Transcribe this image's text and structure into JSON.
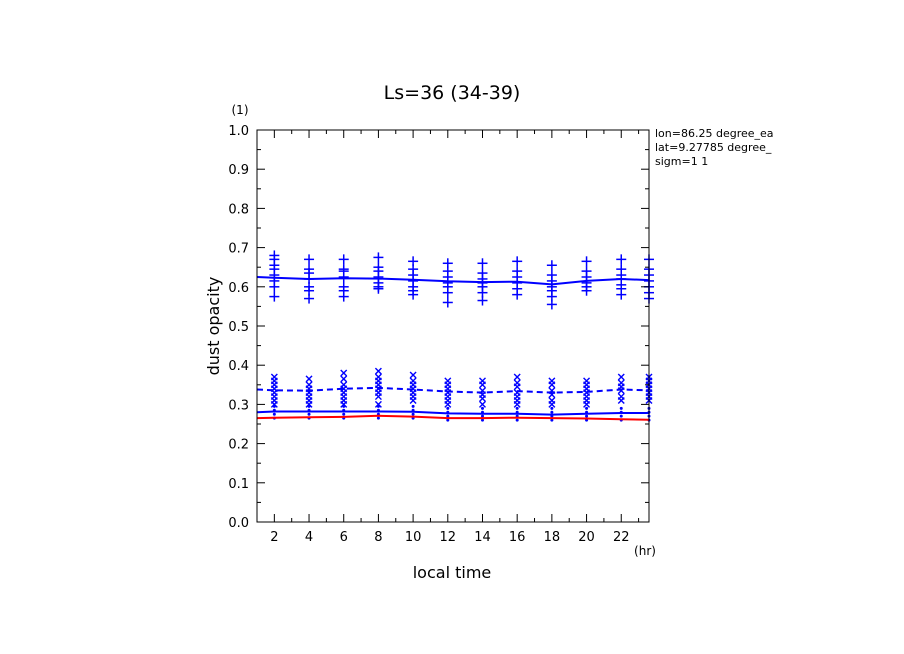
{
  "chart_data": {
    "type": "line",
    "title": "Ls=36 (34-39)",
    "xlabel": "local time",
    "x_unit": "(hr)",
    "ylabel": "dust opacity",
    "y_unit": "(1)",
    "xlim": [
      1,
      23.6
    ],
    "ylim": [
      0,
      1.0
    ],
    "xticks": [
      2,
      4,
      6,
      8,
      10,
      12,
      14,
      16,
      18,
      20,
      22
    ],
    "xtick_labels": [
      "2",
      "4",
      "6",
      "8",
      "10",
      "12",
      "14",
      "16",
      "18",
      "20",
      "22"
    ],
    "yticks": [
      0,
      0.1,
      0.2,
      0.3,
      0.4,
      0.5,
      0.6,
      0.7,
      0.8,
      0.9,
      1.0
    ],
    "ytick_labels": [
      "0.0",
      "0.1",
      "0.2",
      "0.3",
      "0.4",
      "0.5",
      "0.6",
      "0.7",
      "0.8",
      "0.9",
      "1.0"
    ],
    "grid": false,
    "annotations": [
      "lon=86.25 degree_ea",
      "lat=9.27785 degree_",
      "sigm=1 1"
    ],
    "colors": {
      "blue": "#0000ff",
      "red": "#ff0000"
    },
    "series": [
      {
        "style": "solid-blue",
        "x": [
          1,
          2,
          4,
          6,
          8,
          10,
          12,
          14,
          16,
          18,
          20,
          22,
          23.6
        ],
        "values": [
          0.625,
          0.623,
          0.62,
          0.622,
          0.621,
          0.618,
          0.614,
          0.612,
          0.613,
          0.606,
          0.615,
          0.62,
          0.617
        ]
      },
      {
        "style": "dashed-blue",
        "x": [
          1,
          2,
          4,
          6,
          8,
          10,
          12,
          14,
          16,
          18,
          20,
          22,
          23.6
        ],
        "values": [
          0.338,
          0.336,
          0.335,
          0.34,
          0.342,
          0.338,
          0.333,
          0.33,
          0.334,
          0.33,
          0.332,
          0.338,
          0.336
        ]
      },
      {
        "style": "solid-blue-low",
        "x": [
          1,
          2,
          4,
          6,
          8,
          10,
          12,
          14,
          16,
          18,
          20,
          22,
          23.6
        ],
        "values": [
          0.28,
          0.282,
          0.282,
          0.282,
          0.282,
          0.281,
          0.277,
          0.276,
          0.276,
          0.274,
          0.276,
          0.278,
          0.278
        ]
      },
      {
        "style": "solid-red",
        "x": [
          1,
          2,
          4,
          6,
          8,
          10,
          12,
          14,
          16,
          18,
          20,
          22,
          23.6
        ],
        "values": [
          0.265,
          0.266,
          0.267,
          0.268,
          0.271,
          0.269,
          0.265,
          0.265,
          0.266,
          0.265,
          0.264,
          0.262,
          0.261
        ]
      }
    ],
    "scatter_groups": [
      {
        "marker": "plus",
        "points": [
          [
            2,
            0.68
          ],
          [
            2,
            0.67
          ],
          [
            2,
            0.655
          ],
          [
            2,
            0.645
          ],
          [
            2,
            0.63
          ],
          [
            2,
            0.615
          ],
          [
            2,
            0.6
          ],
          [
            2,
            0.575
          ],
          [
            4,
            0.67
          ],
          [
            4,
            0.645
          ],
          [
            4,
            0.635
          ],
          [
            4,
            0.62
          ],
          [
            4,
            0.6
          ],
          [
            4,
            0.59
          ],
          [
            4,
            0.57
          ],
          [
            6,
            0.67
          ],
          [
            6,
            0.645
          ],
          [
            6,
            0.64
          ],
          [
            6,
            0.625
          ],
          [
            6,
            0.6
          ],
          [
            6,
            0.59
          ],
          [
            6,
            0.575
          ],
          [
            8,
            0.675
          ],
          [
            8,
            0.65
          ],
          [
            8,
            0.64
          ],
          [
            8,
            0.625
          ],
          [
            8,
            0.61
          ],
          [
            8,
            0.6
          ],
          [
            8,
            0.595
          ],
          [
            10,
            0.665
          ],
          [
            10,
            0.645
          ],
          [
            10,
            0.63
          ],
          [
            10,
            0.615
          ],
          [
            10,
            0.6
          ],
          [
            10,
            0.59
          ],
          [
            10,
            0.58
          ],
          [
            12,
            0.66
          ],
          [
            12,
            0.64
          ],
          [
            12,
            0.625
          ],
          [
            12,
            0.61
          ],
          [
            12,
            0.6
          ],
          [
            12,
            0.585
          ],
          [
            12,
            0.56
          ],
          [
            14,
            0.66
          ],
          [
            14,
            0.635
          ],
          [
            14,
            0.62
          ],
          [
            14,
            0.61
          ],
          [
            14,
            0.6
          ],
          [
            14,
            0.585
          ],
          [
            14,
            0.565
          ],
          [
            16,
            0.665
          ],
          [
            16,
            0.64
          ],
          [
            16,
            0.625
          ],
          [
            16,
            0.61
          ],
          [
            16,
            0.595
          ],
          [
            16,
            0.58
          ],
          [
            18,
            0.655
          ],
          [
            18,
            0.63
          ],
          [
            18,
            0.615
          ],
          [
            18,
            0.6
          ],
          [
            18,
            0.59
          ],
          [
            18,
            0.575
          ],
          [
            18,
            0.555
          ],
          [
            20,
            0.665
          ],
          [
            20,
            0.64
          ],
          [
            20,
            0.625
          ],
          [
            20,
            0.61
          ],
          [
            20,
            0.6
          ],
          [
            20,
            0.59
          ],
          [
            22,
            0.67
          ],
          [
            22,
            0.645
          ],
          [
            22,
            0.63
          ],
          [
            22,
            0.62
          ],
          [
            22,
            0.605
          ],
          [
            22,
            0.595
          ],
          [
            22,
            0.58
          ],
          [
            23.6,
            0.67
          ],
          [
            23.6,
            0.645
          ],
          [
            23.6,
            0.63
          ],
          [
            23.6,
            0.615
          ],
          [
            23.6,
            0.6
          ],
          [
            23.6,
            0.585
          ],
          [
            23.6,
            0.57
          ]
        ]
      },
      {
        "marker": "cross",
        "points": [
          [
            2,
            0.37
          ],
          [
            2,
            0.36
          ],
          [
            2,
            0.35
          ],
          [
            2,
            0.34
          ],
          [
            2,
            0.33
          ],
          [
            2,
            0.32
          ],
          [
            2,
            0.31
          ],
          [
            2,
            0.3
          ],
          [
            4,
            0.365
          ],
          [
            4,
            0.35
          ],
          [
            4,
            0.34
          ],
          [
            4,
            0.33
          ],
          [
            4,
            0.32
          ],
          [
            4,
            0.31
          ],
          [
            4,
            0.3
          ],
          [
            6,
            0.38
          ],
          [
            6,
            0.365
          ],
          [
            6,
            0.35
          ],
          [
            6,
            0.34
          ],
          [
            6,
            0.33
          ],
          [
            6,
            0.32
          ],
          [
            6,
            0.31
          ],
          [
            6,
            0.3
          ],
          [
            8,
            0.385
          ],
          [
            8,
            0.37
          ],
          [
            8,
            0.36
          ],
          [
            8,
            0.35
          ],
          [
            8,
            0.34
          ],
          [
            8,
            0.33
          ],
          [
            8,
            0.32
          ],
          [
            8,
            0.3
          ],
          [
            10,
            0.375
          ],
          [
            10,
            0.36
          ],
          [
            10,
            0.35
          ],
          [
            10,
            0.34
          ],
          [
            10,
            0.33
          ],
          [
            10,
            0.32
          ],
          [
            10,
            0.31
          ],
          [
            12,
            0.36
          ],
          [
            12,
            0.35
          ],
          [
            12,
            0.34
          ],
          [
            12,
            0.33
          ],
          [
            12,
            0.32
          ],
          [
            12,
            0.31
          ],
          [
            12,
            0.3
          ],
          [
            14,
            0.36
          ],
          [
            14,
            0.35
          ],
          [
            14,
            0.335
          ],
          [
            14,
            0.325
          ],
          [
            14,
            0.315
          ],
          [
            14,
            0.3
          ],
          [
            16,
            0.37
          ],
          [
            16,
            0.355
          ],
          [
            16,
            0.345
          ],
          [
            16,
            0.33
          ],
          [
            16,
            0.32
          ],
          [
            16,
            0.31
          ],
          [
            16,
            0.3
          ],
          [
            18,
            0.36
          ],
          [
            18,
            0.35
          ],
          [
            18,
            0.335
          ],
          [
            18,
            0.325
          ],
          [
            18,
            0.31
          ],
          [
            18,
            0.3
          ],
          [
            20,
            0.36
          ],
          [
            20,
            0.35
          ],
          [
            20,
            0.34
          ],
          [
            20,
            0.33
          ],
          [
            20,
            0.32
          ],
          [
            20,
            0.31
          ],
          [
            20,
            0.3
          ],
          [
            22,
            0.37
          ],
          [
            22,
            0.355
          ],
          [
            22,
            0.345
          ],
          [
            22,
            0.335
          ],
          [
            22,
            0.32
          ],
          [
            22,
            0.31
          ],
          [
            23.6,
            0.37
          ],
          [
            23.6,
            0.36
          ],
          [
            23.6,
            0.35
          ],
          [
            23.6,
            0.34
          ],
          [
            23.6,
            0.33
          ],
          [
            23.6,
            0.32
          ],
          [
            23.6,
            0.31
          ]
        ]
      },
      {
        "marker": "dot",
        "points": [
          [
            2,
            0.295
          ],
          [
            2,
            0.285
          ],
          [
            2,
            0.275
          ],
          [
            2,
            0.265
          ],
          [
            4,
            0.295
          ],
          [
            4,
            0.285
          ],
          [
            4,
            0.275
          ],
          [
            4,
            0.265
          ],
          [
            6,
            0.295
          ],
          [
            6,
            0.285
          ],
          [
            6,
            0.275
          ],
          [
            6,
            0.265
          ],
          [
            8,
            0.295
          ],
          [
            8,
            0.285
          ],
          [
            8,
            0.275
          ],
          [
            8,
            0.265
          ],
          [
            10,
            0.295
          ],
          [
            10,
            0.285
          ],
          [
            10,
            0.275
          ],
          [
            10,
            0.265
          ],
          [
            12,
            0.29
          ],
          [
            12,
            0.28
          ],
          [
            12,
            0.27
          ],
          [
            12,
            0.26
          ],
          [
            14,
            0.29
          ],
          [
            14,
            0.28
          ],
          [
            14,
            0.27
          ],
          [
            14,
            0.26
          ],
          [
            16,
            0.29
          ],
          [
            16,
            0.28
          ],
          [
            16,
            0.27
          ],
          [
            16,
            0.26
          ],
          [
            18,
            0.29
          ],
          [
            18,
            0.28
          ],
          [
            18,
            0.27
          ],
          [
            18,
            0.26
          ],
          [
            20,
            0.29
          ],
          [
            20,
            0.28
          ],
          [
            20,
            0.27
          ],
          [
            20,
            0.26
          ],
          [
            22,
            0.29
          ],
          [
            22,
            0.28
          ],
          [
            22,
            0.27
          ],
          [
            22,
            0.26
          ],
          [
            23.6,
            0.29
          ],
          [
            23.6,
            0.28
          ],
          [
            23.6,
            0.27
          ],
          [
            23.6,
            0.26
          ]
        ]
      }
    ]
  }
}
